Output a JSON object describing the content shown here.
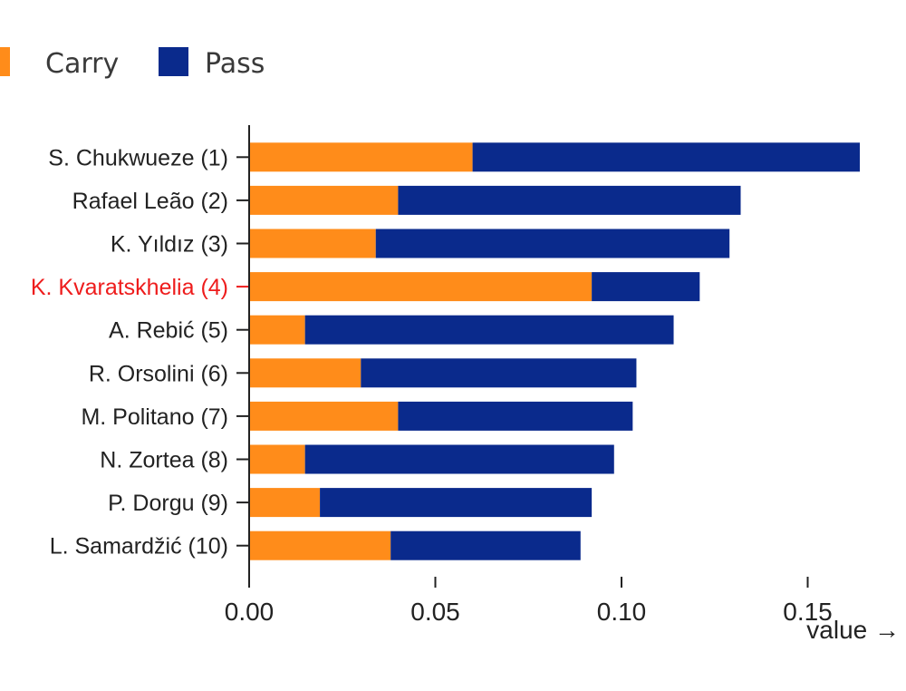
{
  "chart_data": {
    "type": "bar",
    "orientation": "horizontal",
    "stacked": true,
    "categories": [
      "S. Chukwueze (1)",
      "Rafael Leão (2)",
      "K. Yıldız (3)",
      "K. Kvaratskhelia (4)",
      "A. Rebić (5)",
      "R. Orsolini (6)",
      "M. Politano (7)",
      "N. Zortea (8)",
      "P. Dorgu (9)",
      "L. Samardžić (10)"
    ],
    "highlight_category": "K. Kvaratskhelia (4)",
    "highlight_color": "#ee1c1c",
    "series": [
      {
        "name": "Carry",
        "color": "#ff8c1a",
        "values": [
          0.06,
          0.04,
          0.034,
          0.092,
          0.015,
          0.03,
          0.04,
          0.015,
          0.019,
          0.038
        ]
      },
      {
        "name": "Pass",
        "color": "#0a2a8c",
        "values": [
          0.104,
          0.092,
          0.095,
          0.029,
          0.099,
          0.074,
          0.063,
          0.083,
          0.073,
          0.051
        ]
      }
    ],
    "xlabel": "value →",
    "ylabel": "",
    "xlim": [
      0,
      0.165
    ],
    "xticks": [
      0.0,
      0.05,
      0.1,
      0.15
    ],
    "xtick_labels": [
      "0.00",
      "0.05",
      "0.10",
      "0.15"
    ],
    "grid": false,
    "legend_position": "top-left"
  }
}
